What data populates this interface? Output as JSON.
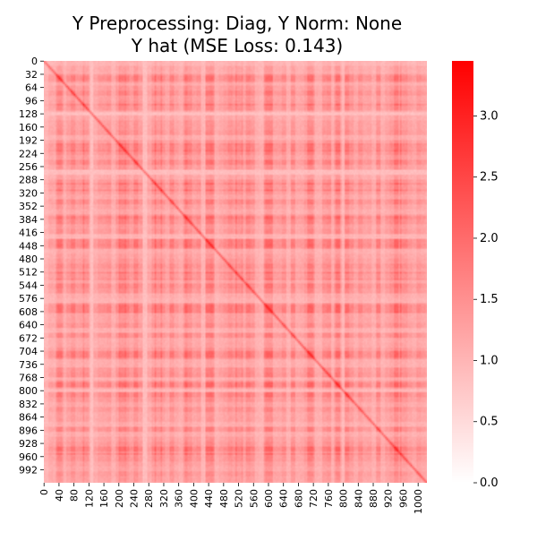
{
  "chart_data": {
    "type": "heatmap",
    "title_lines": [
      "Y Preprocessing: Diag, Y Norm: None",
      "Y hat (MSE Loss: 0.143)"
    ],
    "xlabel": "",
    "ylabel": "",
    "n": 1024,
    "x_tick_labels": [
      "0",
      "40",
      "80",
      "120",
      "160",
      "200",
      "240",
      "280",
      "320",
      "360",
      "400",
      "440",
      "480",
      "520",
      "560",
      "600",
      "640",
      "680",
      "720",
      "760",
      "800",
      "840",
      "880",
      "920",
      "960",
      "1000"
    ],
    "y_tick_labels": [
      "0",
      "32",
      "64",
      "96",
      "128",
      "160",
      "192",
      "224",
      "256",
      "288",
      "320",
      "352",
      "384",
      "416",
      "448",
      "480",
      "512",
      "544",
      "576",
      "608",
      "640",
      "672",
      "704",
      "736",
      "768",
      "800",
      "832",
      "864",
      "896",
      "928",
      "960",
      "992"
    ],
    "colorbar": {
      "min": 0.0,
      "max": 3.45,
      "ticks": [
        0.0,
        0.5,
        1.0,
        1.5,
        2.0,
        2.5,
        3.0
      ],
      "tick_labels": [
        "0.0",
        "0.5",
        "1.0",
        "1.5",
        "2.0",
        "2.5",
        "3.0"
      ],
      "color_low": "#ffffff",
      "color_high": "#ff0000"
    },
    "value_range_observed": [
      0.6,
      3.0
    ]
  }
}
